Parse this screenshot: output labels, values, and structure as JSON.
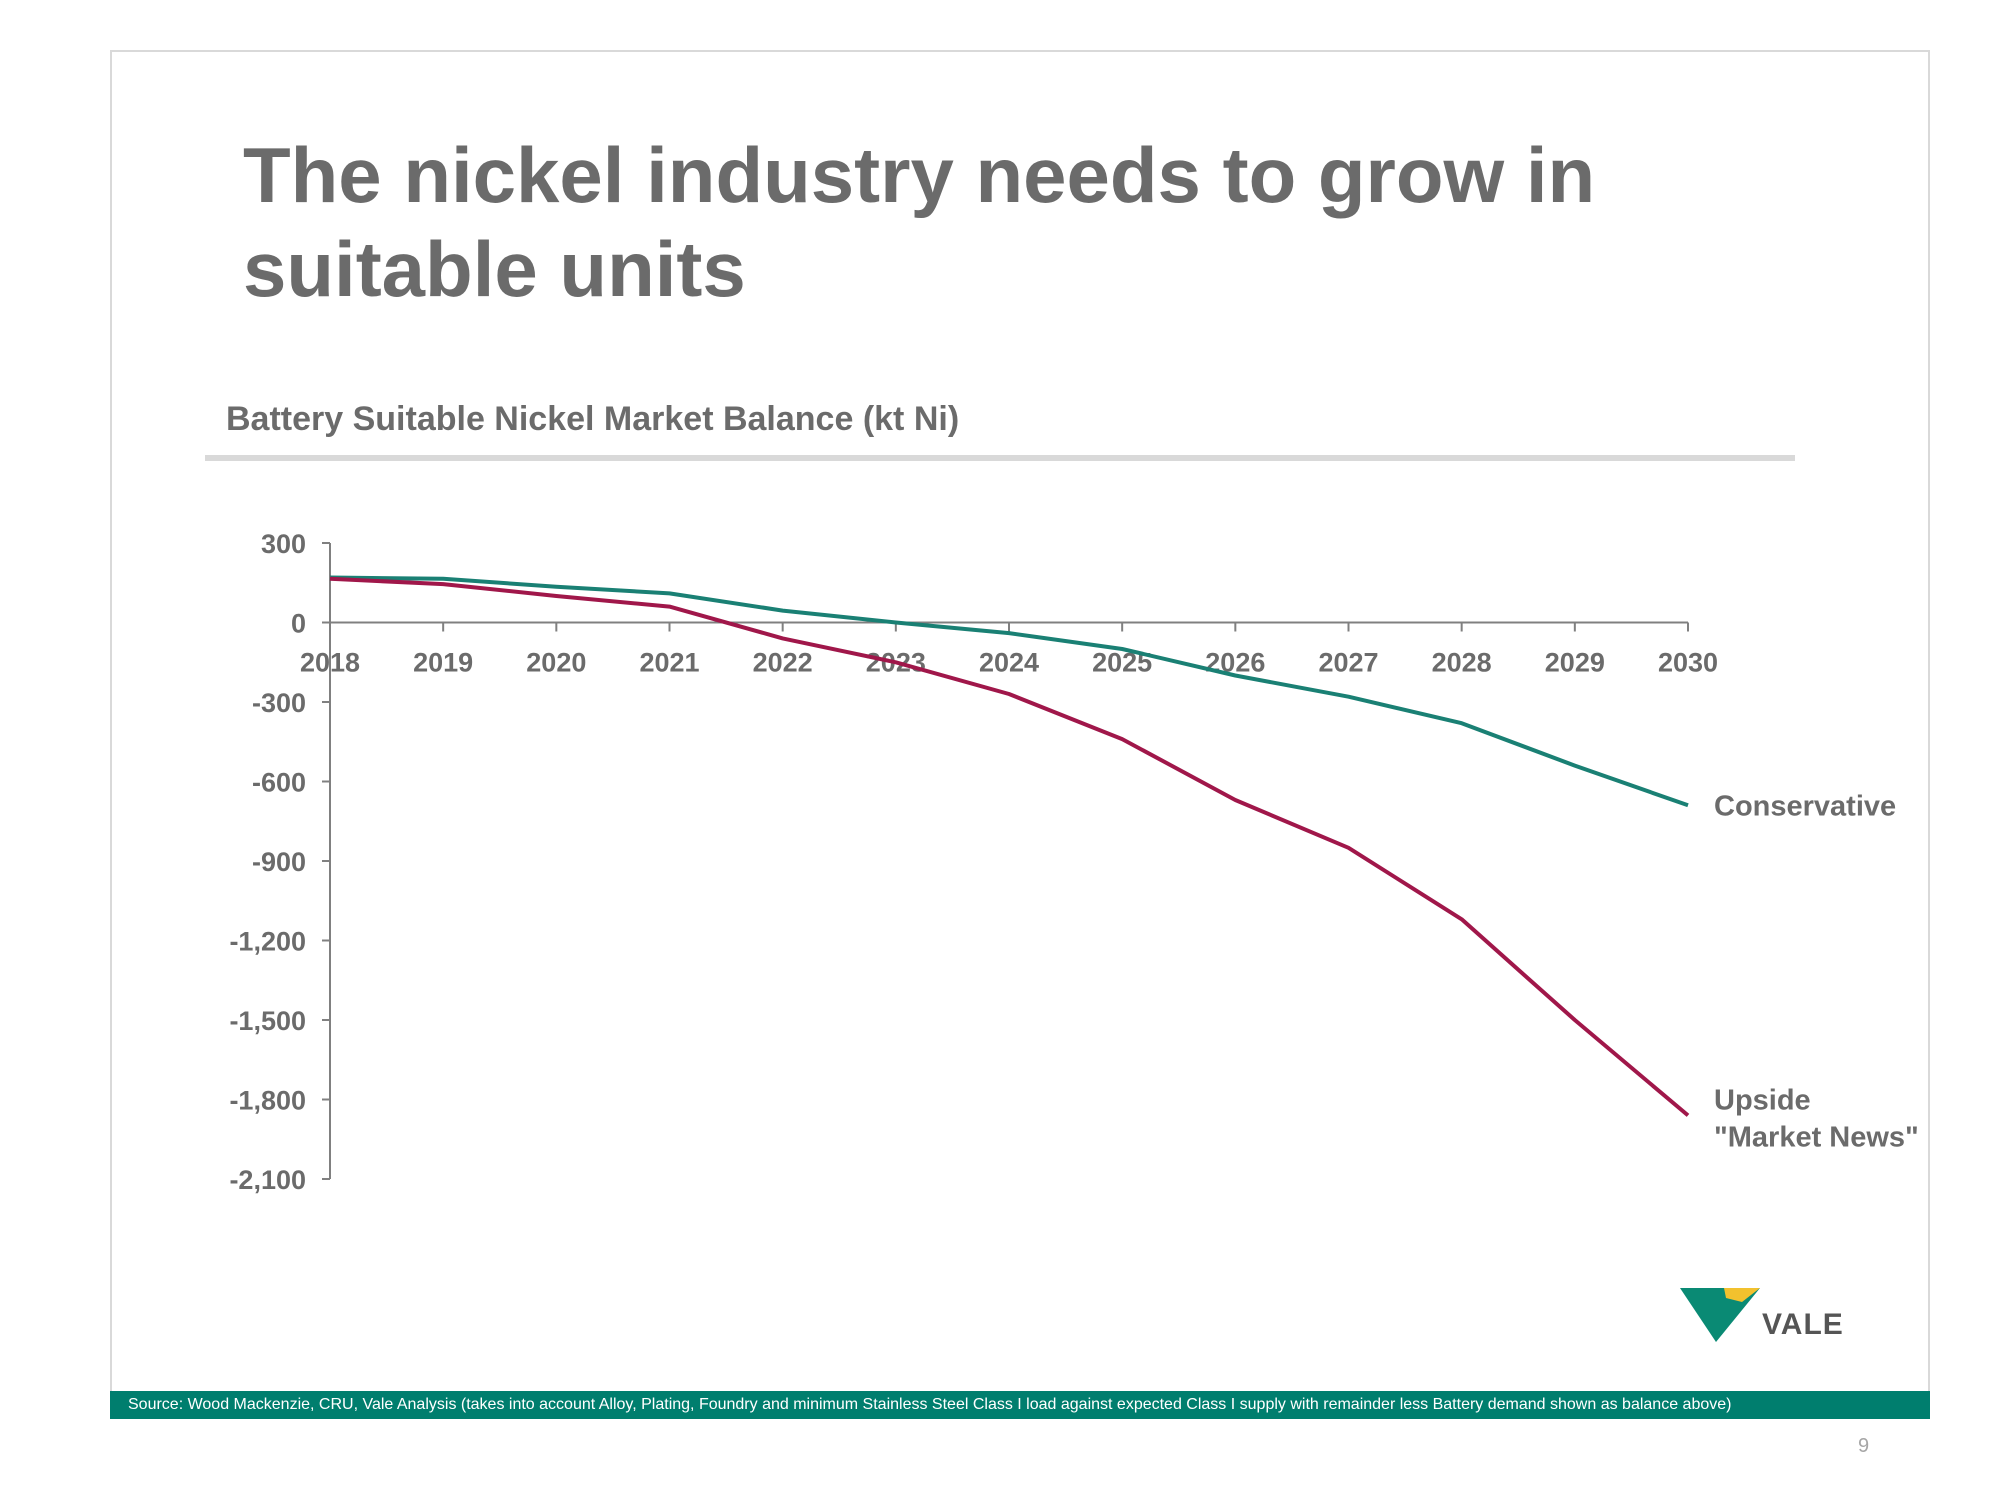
{
  "slide": {
    "title": "The nickel industry needs to grow in suitable units",
    "page_number": "9",
    "source_note": "Source:  Wood Mackenzie, CRU, Vale Analysis (takes into account Alloy, Plating, Foundry and minimum Stainless Steel Class I load against expected Class I supply with remainder less Battery demand shown as balance above)",
    "logo_text": "VALE"
  },
  "colors": {
    "title": "#6b6b6b",
    "conservative": "#1a8074",
    "upside": "#a0174a",
    "axis": "#808080",
    "footer_bg": "#007e6e",
    "logo_green": "#0a8a74",
    "logo_yellow": "#f2c12e"
  },
  "chart_data": {
    "type": "line",
    "title": "Battery Suitable Nickel Market Balance (kt Ni)",
    "x": [
      "2018",
      "2019",
      "2020",
      "2021",
      "2022",
      "2023",
      "2024",
      "2025",
      "2026",
      "2027",
      "2028",
      "2029",
      "2030"
    ],
    "y_ticks": [
      300,
      0,
      -300,
      -600,
      -900,
      -1200,
      -1500,
      -1800,
      -2100
    ],
    "y_tick_labels": [
      "300",
      "0",
      "-300",
      "-600",
      "-900",
      "-1,200",
      "-1,500",
      "-1,800",
      "-2,100"
    ],
    "ylim": [
      -2100,
      300
    ],
    "grid": false,
    "legend": "inline labels at line ends (right)",
    "series": [
      {
        "name": "Conservative",
        "color_key": "conservative",
        "values": [
          170,
          165,
          135,
          110,
          45,
          0,
          -40,
          -100,
          -200,
          -280,
          -380,
          -540,
          -690
        ]
      },
      {
        "name": "Upside \"Market News\"",
        "label_lines": [
          "Upside",
          "\"Market News\""
        ],
        "color_key": "upside",
        "values": [
          165,
          145,
          100,
          60,
          -60,
          -150,
          -270,
          -440,
          -670,
          -850,
          -1120,
          -1500,
          -1860
        ]
      }
    ]
  }
}
